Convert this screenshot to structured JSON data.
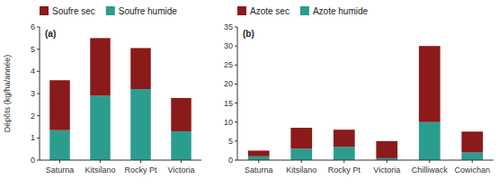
{
  "chart_data": [
    {
      "type": "bar",
      "title": "(a)",
      "ylabel": "Dépôts (kg/ha/année)",
      "categories": [
        "Saturna",
        "Kitsilano",
        "Rocky Pt",
        "Victoria"
      ],
      "series": [
        {
          "name": "Soufre humide",
          "color": "#2a9d8f",
          "values": [
            1.35,
            2.9,
            3.2,
            1.3
          ]
        },
        {
          "name": "Soufre sec",
          "color": "#8b1a1a",
          "values": [
            2.25,
            2.6,
            1.85,
            1.5
          ]
        }
      ],
      "ylim": [
        0,
        6
      ],
      "yticks": [
        0,
        1,
        2,
        3,
        4,
        5,
        6
      ],
      "stacked": true,
      "grid": false,
      "legend": "top"
    },
    {
      "type": "bar",
      "title": "(b)",
      "categories": [
        "Saturna",
        "Kitsilano",
        "Rocky Pt",
        "Victoria",
        "Chilliwack",
        "Cowichan"
      ],
      "series": [
        {
          "name": "Azote humide",
          "color": "#2a9d8f",
          "values": [
            1.0,
            3.0,
            3.5,
            0.5,
            10.0,
            2.0
          ]
        },
        {
          "name": "Azote sec",
          "color": "#8b1a1a",
          "values": [
            1.5,
            5.5,
            4.5,
            4.5,
            20.0,
            5.5
          ]
        }
      ],
      "ylim": [
        0,
        35
      ],
      "yticks": [
        0,
        5,
        10,
        15,
        20,
        25,
        30,
        35
      ],
      "stacked": true,
      "grid": false,
      "legend": "top"
    }
  ]
}
